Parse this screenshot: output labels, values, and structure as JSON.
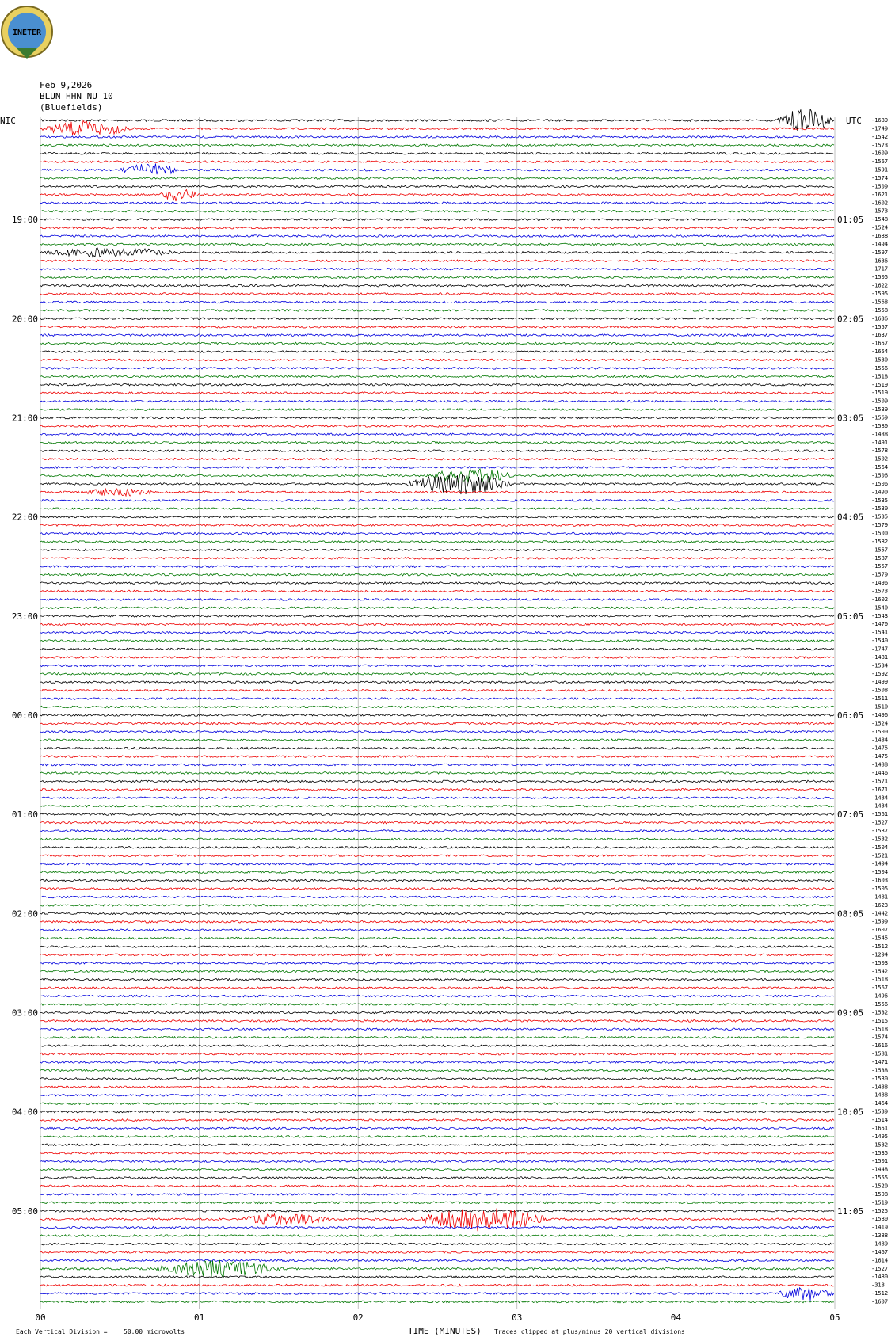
{
  "logo": "INETER",
  "header": {
    "date": "Feb 9,2026",
    "station": "BLUN HHN NU 10",
    "location": "(Bluefields)"
  },
  "left_zone": "NIC",
  "right_zone": "UTC",
  "hours_left": [
    "19:00",
    "20:00",
    "21:00",
    "22:00",
    "23:00",
    "00:00",
    "01:00",
    "02:00",
    "03:00",
    "04:00",
    "05:00"
  ],
  "hours_right": [
    "01:05",
    "02:05",
    "03:05",
    "04:05",
    "05:05",
    "06:05",
    "07:05",
    "08:05",
    "09:05",
    "10:05",
    "11:05"
  ],
  "offsets": [
    -1689,
    -1749,
    -1542,
    -1573,
    -1609,
    -1567,
    -1591,
    -1574,
    -1509,
    -1621,
    -1602,
    -1573,
    -1548,
    -1524,
    -1688,
    -1494,
    -1597,
    -1636,
    -1717,
    -1505,
    -1622,
    -1595,
    -1568,
    -1558,
    -1636,
    -1557,
    -1637,
    -1657,
    -1654,
    -1530,
    -1556,
    -1518,
    -1519,
    -1519,
    -1509,
    -1539,
    -1569,
    -1580,
    -1488,
    -1491,
    -1578,
    -1502,
    -1564,
    -1506,
    -1506,
    -1490,
    -1535,
    -1530,
    -1535,
    -1579,
    -1500,
    -1582,
    -1557,
    -1587,
    -1557,
    -1579,
    -1496,
    -1573,
    -1602,
    -1540,
    -1543,
    -1470,
    -1541,
    -1540,
    -1747,
    -1481,
    -1534,
    -1592,
    -1499,
    -1508,
    -1511,
    -1510,
    -1496,
    -1524,
    -1500,
    -1484,
    -1475,
    -1475,
    -1488,
    -1446,
    -1571,
    -1671,
    -1434,
    -1434,
    -1561,
    -1527,
    -1537,
    -1532,
    -1504,
    -1521,
    -1494,
    -1504,
    -1603,
    -1505,
    -1481,
    -1623,
    -1442,
    -1599,
    -1607,
    -1545,
    -1512,
    -1294,
    -1503,
    -1542,
    -1518,
    -1567,
    -1496,
    -1556,
    -1532,
    -1515,
    -1518,
    -1574,
    -1616,
    -1581,
    -1471,
    -1538,
    -1530,
    -1488,
    -1488,
    -1464,
    -1539,
    -1514,
    -1651,
    -1495,
    -1532,
    -1535,
    -1501,
    -1448,
    -1555,
    -1520,
    -1508,
    -1519,
    -1525,
    -1580,
    -1419,
    -1388,
    -1489,
    -1467,
    -1614,
    -1527,
    -1480,
    -318,
    -1512,
    -1607
  ],
  "x_ticks": [
    "00",
    "01",
    "02",
    "03",
    "04",
    "05"
  ],
  "x_label": "TIME (MINUTES)",
  "footer": {
    "division": "Each Vertical Division =",
    "scale": "50.00 microvolts",
    "clip": "Traces clipped at plus/minus 20 vertical divisions"
  }
}
